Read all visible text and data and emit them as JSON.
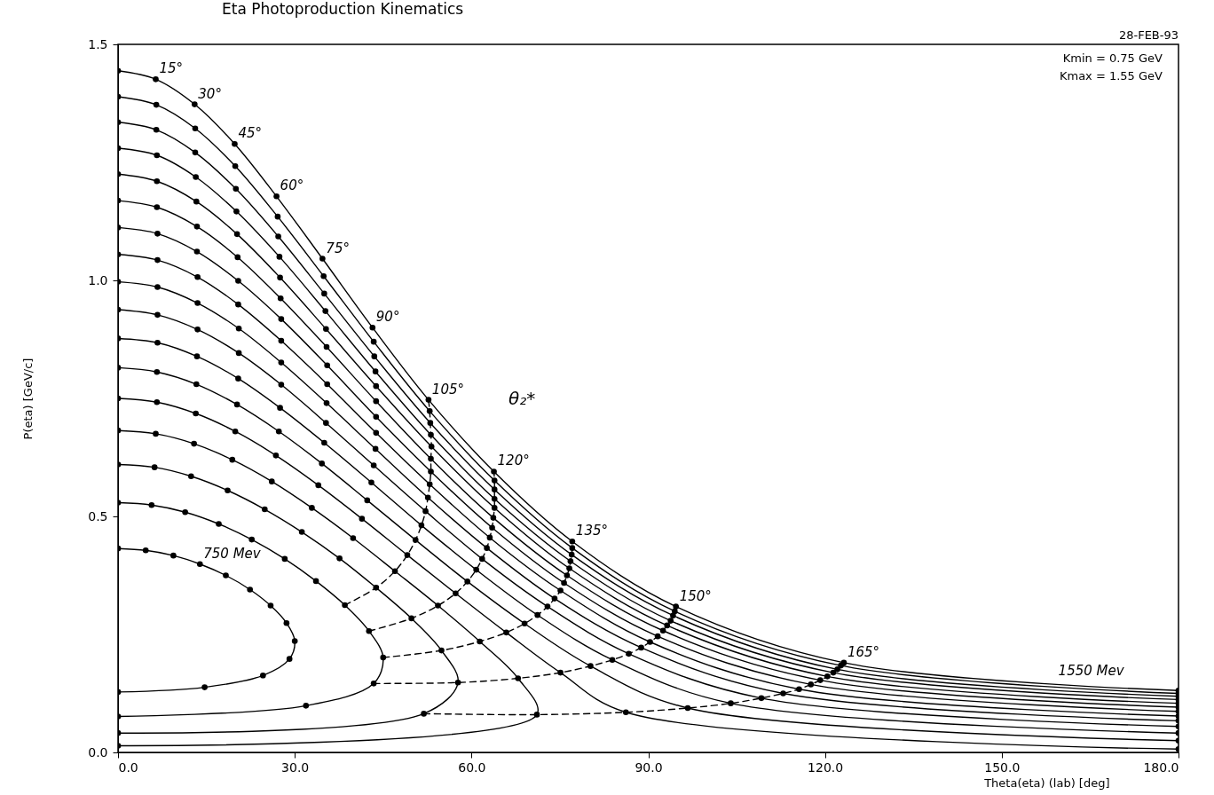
{
  "chart_data": {
    "type": "line",
    "title": "Eta Photoproduction Kinematics",
    "xlabel": "Theta(eta) (lab) [deg]",
    "ylabel": "P(eta) [GeV/c]",
    "xlim": [
      0,
      180
    ],
    "xticks": [
      {
        "value": 0,
        "label": "0.0"
      },
      {
        "value": 30,
        "label": "30.0"
      },
      {
        "value": 60,
        "label": "60.0"
      },
      {
        "value": 90,
        "label": "90.0"
      },
      {
        "value": 120,
        "label": "120.0"
      },
      {
        "value": 150,
        "label": "150.0"
      },
      {
        "value": 180,
        "label": "180.0"
      }
    ],
    "ylim": [
      0,
      1.5
    ],
    "yticks": [
      {
        "value": 0,
        "label": "0.0"
      },
      {
        "value": 0.5,
        "label": "0.5"
      },
      {
        "value": 1,
        "label": "1.0"
      },
      {
        "value": 1.5,
        "label": "1.5"
      }
    ],
    "grid": false,
    "marker": "circle",
    "series": [
      {
        "color": "#000000",
        "x": [
          0,
          4.7,
          9.4,
          13.9,
          18.3,
          22.4,
          25.9,
          28.6,
          30.0,
          29.1,
          24.6,
          14.7,
          0
        ],
        "values": [
          0.432,
          0.428,
          0.417,
          0.399,
          0.375,
          0.345,
          0.311,
          0.274,
          0.236,
          0.198,
          0.163,
          0.138,
          0.128
        ]
      },
      {
        "color": "#000000",
        "x": [
          0,
          5.7,
          11.4,
          17.1,
          22.7,
          28.3,
          33.6,
          38.5,
          42.6,
          45.0,
          43.4,
          31.9,
          0
        ],
        "values": [
          0.529,
          0.524,
          0.509,
          0.484,
          0.451,
          0.41,
          0.363,
          0.312,
          0.257,
          0.201,
          0.146,
          0.099,
          0.076
        ]
      },
      {
        "color": "#000000",
        "x": [
          0,
          6.2,
          12.4,
          18.6,
          24.9,
          31.2,
          37.6,
          43.8,
          49.8,
          54.9,
          57.7,
          51.9,
          0
        ],
        "values": [
          0.61,
          0.604,
          0.585,
          0.555,
          0.515,
          0.467,
          0.411,
          0.349,
          0.284,
          0.216,
          0.148,
          0.082,
          0.041
        ]
      },
      {
        "color": "#000000",
        "x": [
          0,
          6.4,
          12.9,
          19.4,
          26.1,
          32.9,
          39.9,
          47.0,
          54.3,
          61.4,
          67.9,
          71.1,
          0
        ],
        "values": [
          0.682,
          0.675,
          0.654,
          0.62,
          0.574,
          0.518,
          0.454,
          0.384,
          0.311,
          0.235,
          0.157,
          0.08,
          0.014
        ]
      },
      {
        "color": "#000000",
        "x": [
          0,
          6.6,
          13.2,
          19.9,
          26.8,
          34.0,
          41.4,
          49.1,
          57.3,
          65.9,
          75.1,
          86.2,
          180
        ],
        "values": [
          0.75,
          0.742,
          0.718,
          0.68,
          0.629,
          0.566,
          0.495,
          0.418,
          0.337,
          0.254,
          0.169,
          0.085,
          0.007
        ]
      },
      {
        "color": "#000000",
        "x": [
          0,
          6.6,
          13.3,
          20.2,
          27.3,
          34.6,
          42.3,
          50.5,
          59.3,
          69.0,
          80.2,
          96.7,
          180
        ],
        "values": [
          0.815,
          0.806,
          0.78,
          0.737,
          0.68,
          0.612,
          0.534,
          0.45,
          0.362,
          0.273,
          0.183,
          0.094,
          0.025
        ]
      },
      {
        "color": "#000000",
        "x": [
          0,
          6.7,
          13.4,
          20.4,
          27.5,
          35.0,
          43.0,
          51.5,
          60.8,
          71.2,
          83.9,
          104.0,
          180
        ],
        "values": [
          0.877,
          0.868,
          0.839,
          0.792,
          0.73,
          0.656,
          0.572,
          0.481,
          0.387,
          0.291,
          0.196,
          0.104,
          0.041
        ]
      },
      {
        "color": "#000000",
        "x": [
          0,
          6.7,
          13.5,
          20.5,
          27.7,
          35.3,
          43.4,
          52.2,
          61.8,
          72.9,
          86.7,
          109.2,
          180
        ],
        "values": [
          0.938,
          0.927,
          0.896,
          0.846,
          0.779,
          0.698,
          0.608,
          0.511,
          0.41,
          0.309,
          0.209,
          0.115,
          0.055
        ]
      },
      {
        "color": "#000000",
        "x": [
          0,
          6.7,
          13.5,
          20.5,
          27.7,
          35.4,
          43.7,
          52.6,
          62.6,
          74.1,
          88.8,
          112.9,
          180
        ],
        "values": [
          0.997,
          0.986,
          0.952,
          0.898,
          0.826,
          0.74,
          0.643,
          0.54,
          0.433,
          0.326,
          0.222,
          0.125,
          0.067
        ]
      },
      {
        "color": "#000000",
        "x": [
          0,
          6.7,
          13.5,
          20.4,
          27.7,
          35.5,
          43.8,
          52.9,
          63.1,
          75.1,
          90.3,
          115.6,
          180
        ],
        "values": [
          1.055,
          1.043,
          1.007,
          0.949,
          0.872,
          0.78,
          0.677,
          0.568,
          0.455,
          0.343,
          0.234,
          0.134,
          0.077
        ]
      },
      {
        "color": "#000000",
        "x": [
          0,
          6.7,
          13.4,
          20.4,
          27.7,
          35.5,
          43.8,
          53.1,
          63.5,
          75.7,
          91.6,
          117.6,
          180
        ],
        "values": [
          1.112,
          1.099,
          1.061,
          0.999,
          0.918,
          0.82,
          0.711,
          0.595,
          0.476,
          0.359,
          0.246,
          0.144,
          0.087
        ]
      },
      {
        "color": "#000000",
        "x": [
          0,
          6.6,
          13.4,
          20.3,
          27.6,
          35.4,
          43.8,
          53.1,
          63.7,
          76.2,
          92.5,
          119.2,
          180
        ],
        "values": [
          1.169,
          1.155,
          1.114,
          1.049,
          0.962,
          0.859,
          0.744,
          0.622,
          0.497,
          0.375,
          0.258,
          0.153,
          0.096
        ]
      },
      {
        "color": "#000000",
        "x": [
          0,
          6.6,
          13.3,
          20.2,
          27.5,
          35.3,
          43.8,
          53.2,
          63.9,
          76.6,
          93.2,
          120.4,
          180
        ],
        "values": [
          1.225,
          1.21,
          1.167,
          1.098,
          1.006,
          0.897,
          0.776,
          0.648,
          0.518,
          0.39,
          0.269,
          0.161,
          0.104
        ]
      },
      {
        "color": "#000000",
        "x": [
          0,
          6.6,
          13.2,
          20.1,
          27.4,
          35.2,
          43.7,
          53.1,
          63.9,
          76.8,
          93.8,
          121.4,
          180
        ],
        "values": [
          1.28,
          1.265,
          1.219,
          1.146,
          1.05,
          0.935,
          0.807,
          0.673,
          0.537,
          0.405,
          0.279,
          0.169,
          0.112
        ]
      },
      {
        "color": "#000000",
        "x": [
          0,
          6.5,
          13.1,
          20.0,
          27.2,
          35.0,
          43.5,
          53.0,
          63.9,
          77.0,
          94.2,
          122.1,
          180
        ],
        "values": [
          1.335,
          1.319,
          1.271,
          1.194,
          1.093,
          0.972,
          0.839,
          0.698,
          0.557,
          0.419,
          0.29,
          0.176,
          0.119
        ]
      },
      {
        "color": "#000000",
        "x": [
          0,
          6.5,
          13.1,
          19.9,
          27.1,
          34.9,
          43.4,
          52.9,
          63.9,
          77.1,
          94.5,
          122.7,
          180
        ],
        "values": [
          1.389,
          1.372,
          1.322,
          1.242,
          1.135,
          1.009,
          0.87,
          0.723,
          0.576,
          0.433,
          0.299,
          0.184,
          0.125
        ]
      },
      {
        "color": "#000000",
        "x": [
          0,
          6.4,
          13.0,
          19.8,
          26.9,
          34.7,
          43.2,
          52.7,
          63.8,
          77.1,
          94.7,
          123.2,
          180
        ],
        "values": [
          1.444,
          1.426,
          1.373,
          1.289,
          1.178,
          1.046,
          0.9,
          0.747,
          0.595,
          0.447,
          0.309,
          0.19,
          0.131
        ]
      },
      {
        "color": "#000000",
        "line_style": "dashed",
        "marker": "none",
        "x": [
          38.5,
          43.8,
          47.0,
          49.1,
          50.5,
          51.5,
          52.2,
          52.6,
          52.9,
          53.1,
          53.1,
          53.2,
          53.1,
          53.0,
          52.9,
          52.7
        ],
        "values": [
          0.312,
          0.349,
          0.384,
          0.418,
          0.45,
          0.481,
          0.511,
          0.54,
          0.568,
          0.595,
          0.622,
          0.648,
          0.673,
          0.698,
          0.723,
          0.747
        ]
      },
      {
        "color": "#000000",
        "line_style": "dashed",
        "marker": "none",
        "x": [
          42.6,
          49.8,
          54.3,
          57.3,
          59.3,
          60.8,
          61.8,
          62.6,
          63.1,
          63.5,
          63.7,
          63.9,
          63.9,
          63.9,
          63.9,
          63.8
        ],
        "values": [
          0.257,
          0.284,
          0.311,
          0.337,
          0.362,
          0.387,
          0.41,
          0.433,
          0.455,
          0.476,
          0.497,
          0.518,
          0.537,
          0.557,
          0.576,
          0.595
        ]
      },
      {
        "color": "#000000",
        "line_style": "dashed",
        "marker": "none",
        "x": [
          45.0,
          54.9,
          61.4,
          65.9,
          69.0,
          71.2,
          72.9,
          74.1,
          75.1,
          75.7,
          76.2,
          76.6,
          76.8,
          77.0,
          77.1,
          77.1
        ],
        "values": [
          0.201,
          0.216,
          0.235,
          0.254,
          0.273,
          0.291,
          0.309,
          0.326,
          0.343,
          0.359,
          0.375,
          0.39,
          0.405,
          0.419,
          0.433,
          0.447
        ]
      },
      {
        "color": "#000000",
        "line_style": "dashed",
        "marker": "none",
        "x": [
          43.4,
          57.7,
          67.9,
          75.1,
          80.2,
          83.9,
          86.7,
          88.8,
          90.3,
          91.6,
          92.5,
          93.2,
          93.8,
          94.2,
          94.5,
          94.7
        ],
        "values": [
          0.146,
          0.148,
          0.157,
          0.169,
          0.183,
          0.196,
          0.209,
          0.222,
          0.234,
          0.246,
          0.258,
          0.269,
          0.279,
          0.29,
          0.299,
          0.309
        ]
      },
      {
        "color": "#000000",
        "line_style": "dashed",
        "marker": "none",
        "x": [
          51.9,
          71.1,
          86.2,
          96.7,
          104.0,
          109.2,
          112.9,
          115.6,
          117.6,
          119.2,
          120.4,
          121.4,
          122.1,
          122.7,
          123.2
        ],
        "values": [
          0.082,
          0.08,
          0.085,
          0.094,
          0.104,
          0.115,
          0.125,
          0.134,
          0.144,
          0.153,
          0.161,
          0.169,
          0.176,
          0.184,
          0.19
        ]
      }
    ],
    "annotations": [
      "28-FEB-93",
      "Kmin = 0.75 GeV",
      "Kmax = 1.55 GeV",
      {
        "text": "15°",
        "x": 6.4,
        "y": 1.426
      },
      {
        "text": "30°",
        "x": 13.0,
        "y": 1.373
      },
      {
        "text": "45°",
        "x": 19.8,
        "y": 1.289
      },
      {
        "text": "60°",
        "x": 26.9,
        "y": 1.178
      },
      {
        "text": "75°",
        "x": 34.7,
        "y": 1.046
      },
      {
        "text": "90°",
        "x": 43.2,
        "y": 0.9
      },
      {
        "text": "105°",
        "x": 52.7,
        "y": 0.747
      },
      {
        "text": "120°",
        "x": 63.8,
        "y": 0.595
      },
      {
        "text": "135°",
        "x": 77.1,
        "y": 0.447
      },
      {
        "text": "150°",
        "x": 94.7,
        "y": 0.309
      },
      {
        "text": "165°",
        "x": 123.2,
        "y": 0.19
      },
      "θ₂*",
      {
        "text": "750 Mev",
        "x": 13.9,
        "y": 0.399
      },
      {
        "text": "1550 Mev",
        "x": 159,
        "y": 0.15
      }
    ]
  }
}
